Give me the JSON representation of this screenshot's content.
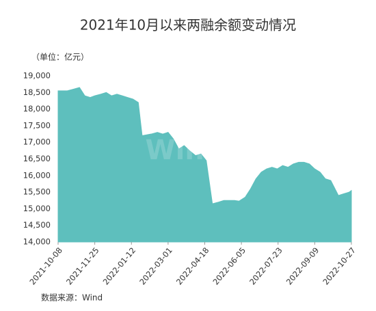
{
  "chart_data": {
    "type": "area",
    "title": "2021年10月以来两融余额变动情况",
    "unit_label": "（单位：亿元）",
    "source": "数据来源：Wind",
    "watermark": "Wind",
    "color": "#5ebfbd",
    "x": [
      "2021-10-08",
      "2021-10-20",
      "2021-10-28",
      "2021-11-05",
      "2021-11-12",
      "2021-11-19",
      "2021-11-25",
      "2021-12-03",
      "2021-12-10",
      "2021-12-17",
      "2021-12-24",
      "2021-12-31",
      "2022-01-07",
      "2022-01-14",
      "2022-01-21",
      "2022-01-26",
      "2022-02-07",
      "2022-02-15",
      "2022-02-22",
      "2022-03-01",
      "2022-03-08",
      "2022-03-15",
      "2022-03-22",
      "2022-03-29",
      "2022-04-06",
      "2022-04-13",
      "2022-04-20",
      "2022-04-28",
      "2022-05-06",
      "2022-05-13",
      "2022-05-20",
      "2022-05-27",
      "2022-06-02",
      "2022-06-10",
      "2022-06-17",
      "2022-06-24",
      "2022-07-01",
      "2022-07-08",
      "2022-07-15",
      "2022-07-22",
      "2022-07-29",
      "2022-08-05",
      "2022-08-12",
      "2022-08-19",
      "2022-08-26",
      "2022-09-02",
      "2022-09-09",
      "2022-09-16",
      "2022-09-23",
      "2022-09-30",
      "2022-10-10",
      "2022-10-17",
      "2022-10-24",
      "2022-10-27"
    ],
    "values": [
      18550,
      18550,
      18600,
      18650,
      18400,
      18350,
      18400,
      18450,
      18500,
      18400,
      18450,
      18400,
      18350,
      18300,
      18200,
      17200,
      17250,
      17300,
      17250,
      17300,
      17100,
      16800,
      16900,
      16750,
      16600,
      16650,
      16450,
      15150,
      15200,
      15250,
      15250,
      15250,
      15230,
      15350,
      15600,
      15900,
      16100,
      16200,
      16250,
      16200,
      16300,
      16250,
      16350,
      16400,
      16400,
      16350,
      16200,
      16100,
      15900,
      15850,
      15400,
      15450,
      15500,
      15550
    ],
    "xlim": [
      "2021-10-08",
      "2022-10-27"
    ],
    "xticks": [
      "2021-10-08",
      "2021-11-25",
      "2022-01-12",
      "2022-03-01",
      "2022-04-18",
      "2022-06-05",
      "2022-07-23",
      "2022-09-09",
      "2022-10-27"
    ],
    "ylim": [
      14000,
      19000
    ],
    "yticks": [
      {
        "value": 14000,
        "label": "14,000"
      },
      {
        "value": 14500,
        "label": "14,500"
      },
      {
        "value": 15000,
        "label": "15,000"
      },
      {
        "value": 15500,
        "label": "15,500"
      },
      {
        "value": 16000,
        "label": "16,000"
      },
      {
        "value": 16500,
        "label": "16,500"
      },
      {
        "value": 17000,
        "label": "17,000"
      },
      {
        "value": 17500,
        "label": "17,500"
      },
      {
        "value": 18000,
        "label": "18,000"
      },
      {
        "value": 18500,
        "label": "18,500"
      },
      {
        "value": 19000,
        "label": "19,000"
      }
    ]
  }
}
